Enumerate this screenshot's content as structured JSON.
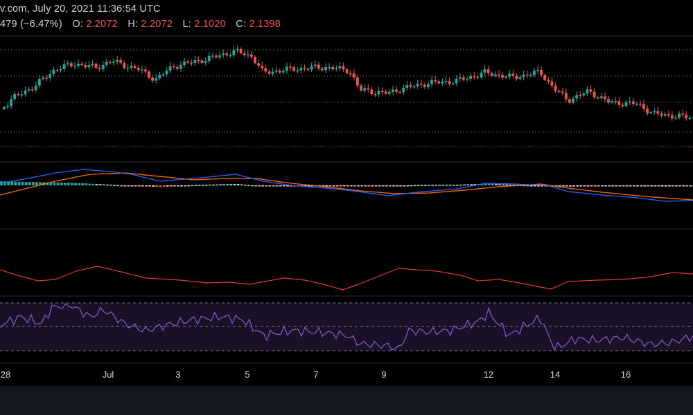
{
  "header": {
    "source_line": "v.com, July 20, 2021 11:36:54 UTC",
    "change_value": "479",
    "change_pct": "(−6.47%)",
    "o_label": "O:",
    "o_value": "2.2072",
    "h_label": "H:",
    "h_value": "2.2072",
    "l_label": "L:",
    "l_value": "2.1020",
    "c_label": "C:",
    "c_value": "2.1398"
  },
  "time_axis": {
    "labels": [
      "28",
      "Jul",
      "3",
      "5",
      "7",
      "9",
      "12",
      "14",
      "16"
    ]
  },
  "colors": {
    "background": "#000000",
    "bull": "#26a69a",
    "bear": "#ef5350",
    "grid_dotted": "#8a7a40",
    "macd_line": "#2962ff",
    "signal_line": "#ff6d00",
    "indicator_line": "#e53935",
    "rsi_line": "#7e57c2",
    "rsi_band": "#1a1128",
    "footer": "#131722"
  },
  "chart_data": {
    "type": "candlestick",
    "x_labels": [
      "28",
      "Jul",
      "3",
      "5",
      "7",
      "9",
      "12",
      "14",
      "16"
    ],
    "panels": [
      "price",
      "macd",
      "line-oscillator",
      "rsi"
    ],
    "last_bar": {
      "open": 2.2072,
      "high": 2.2072,
      "low": 2.102,
      "close": 2.1398,
      "change_pct": -6.47
    }
  }
}
